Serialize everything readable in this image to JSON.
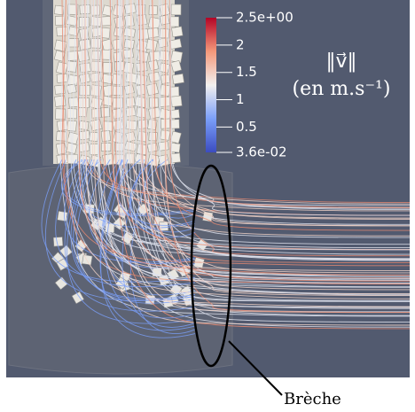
{
  "colorbar": {
    "range": [
      {
        "value": 0.036,
        "label": "3.6e-02"
      },
      {
        "value": 2.5,
        "label": "2.5e+00"
      }
    ],
    "ticks": [
      0.5,
      1,
      1.5,
      2
    ],
    "title": [
      "‖v⃗‖",
      "(en m.s⁻¹)"
    ]
  },
  "annotation": "Brèche"
}
